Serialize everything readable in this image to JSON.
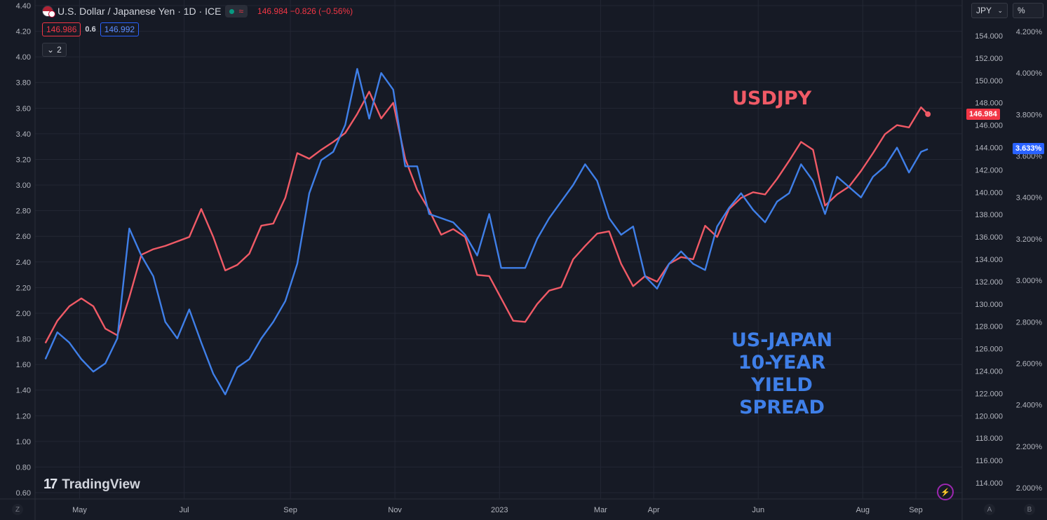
{
  "header": {
    "title": "U.S. Dollar / Japanese Yen · 1D · ICE",
    "price": "146.984",
    "change": "−0.826 (−0.56%)",
    "bid": "146.986",
    "spread": "0.6",
    "ask": "146.992",
    "indicator_count": "2"
  },
  "right_controls": {
    "currency": "JPY",
    "percent": "%"
  },
  "annotations": {
    "usdjpy": "USDJPY",
    "spread_lines": [
      "US-JAPAN",
      "10-YEAR",
      "YIELD",
      "SPREAD"
    ]
  },
  "price_tags": {
    "usdjpy_last": "146.984",
    "spread_last": "3.633%"
  },
  "logo": {
    "text": "TradingView"
  },
  "corner_buttons": {
    "left": "Z",
    "auto": "A",
    "log": "B"
  },
  "icons": [
    "flag-icon",
    "status-dot-icon",
    "waves-icon",
    "chevron-down-icon",
    "tradingview-logo-icon",
    "bolt-icon"
  ],
  "colors": {
    "usdjpy": "#f05a66",
    "spread": "#3f7fe8",
    "background": "#161a25",
    "grid": "#232734"
  },
  "chart_data": {
    "type": "line",
    "axes": {
      "left": {
        "ticks": [
          "4.40",
          "4.20",
          "4.00",
          "3.80",
          "3.60",
          "3.40",
          "3.20",
          "3.00",
          "2.80",
          "2.60",
          "2.40",
          "2.20",
          "2.00",
          "1.80",
          "1.60",
          "1.40",
          "1.20",
          "1.00",
          "0.80",
          "0.60"
        ],
        "range": [
          0.6,
          4.4
        ]
      },
      "right_usdjpy": {
        "ticks": [
          "154.000",
          "152.000",
          "150.000",
          "148.000",
          "146.000",
          "144.000",
          "142.000",
          "140.000",
          "138.000",
          "136.000",
          "134.000",
          "132.000",
          "130.000",
          "128.000",
          "126.000",
          "124.000",
          "122.000",
          "120.000",
          "118.000",
          "116.000",
          "114.000"
        ],
        "range": [
          113,
          156.5
        ]
      },
      "right_spread": {
        "ticks": [
          "4.200%",
          "4.000%",
          "3.800%",
          "3.600%",
          "3.400%",
          "3.200%",
          "3.000%",
          "2.800%",
          "2.600%",
          "2.400%",
          "2.200%",
          "2.000%"
        ],
        "range": [
          1.985,
          4.245
        ]
      },
      "x": {
        "labels": [
          "May",
          "Jul",
          "Sep",
          "Nov",
          "2023",
          "Mar",
          "Apr",
          "Jun",
          "Aug",
          "Sep"
        ]
      }
    },
    "grid": true,
    "series": [
      {
        "name": "USDJPY",
        "axis": "right_usdjpy",
        "x": [
          "2022-04-11",
          "2022-04-18",
          "2022-04-25",
          "2022-05-02",
          "2022-05-09",
          "2022-05-16",
          "2022-05-23",
          "2022-05-30",
          "2022-06-06",
          "2022-06-13",
          "2022-06-20",
          "2022-06-27",
          "2022-07-04",
          "2022-07-11",
          "2022-07-18",
          "2022-07-25",
          "2022-08-01",
          "2022-08-08",
          "2022-08-15",
          "2022-08-22",
          "2022-08-29",
          "2022-09-05",
          "2022-09-12",
          "2022-09-19",
          "2022-09-26",
          "2022-10-03",
          "2022-10-10",
          "2022-10-17",
          "2022-10-24",
          "2022-10-31",
          "2022-11-07",
          "2022-11-14",
          "2022-11-21",
          "2022-11-28",
          "2022-12-05",
          "2022-12-12",
          "2022-12-19",
          "2022-12-26",
          "2023-01-02",
          "2023-01-09",
          "2023-01-16",
          "2023-01-23",
          "2023-01-30",
          "2023-02-06",
          "2023-02-13",
          "2023-02-20",
          "2023-02-27",
          "2023-03-06",
          "2023-03-13",
          "2023-03-20",
          "2023-03-27",
          "2023-04-03",
          "2023-04-10",
          "2023-04-17",
          "2023-04-24",
          "2023-05-01",
          "2023-05-08",
          "2023-05-15",
          "2023-05-22",
          "2023-05-29",
          "2023-06-05",
          "2023-06-12",
          "2023-06-19",
          "2023-06-26",
          "2023-07-03",
          "2023-07-10",
          "2023-07-17",
          "2023-07-24",
          "2023-07-31",
          "2023-08-07",
          "2023-08-14",
          "2023-08-21",
          "2023-08-28",
          "2023-09-04",
          "2023-09-08"
        ],
        "values": [
          126.5,
          128.5,
          129.8,
          130.5,
          129.8,
          127.8,
          127.2,
          130.6,
          134.4,
          134.9,
          135.2,
          135.6,
          136.0,
          138.5,
          136.0,
          133.0,
          133.5,
          134.5,
          137.0,
          137.2,
          139.5,
          143.5,
          143.0,
          143.8,
          144.5,
          145.3,
          147.0,
          149.0,
          146.6,
          148.0,
          143.0,
          140.2,
          138.4,
          136.2,
          136.7,
          136.0,
          132.6,
          132.5,
          130.5,
          128.5,
          128.4,
          130.0,
          131.2,
          131.5,
          134.0,
          135.2,
          136.3,
          136.5,
          133.6,
          131.6,
          132.5,
          132.0,
          133.6,
          134.2,
          134.0,
          137.0,
          136.0,
          138.5,
          139.5,
          140.0,
          139.8,
          141.2,
          142.8,
          144.5,
          143.8,
          138.8,
          139.8,
          140.5,
          141.9,
          143.5,
          145.2,
          146.0,
          145.8,
          147.6,
          146.984
        ]
      },
      {
        "name": "US-Japan 10-Year Yield Spread",
        "axis": "right_spread",
        "x": [
          "2022-04-11",
          "2022-04-18",
          "2022-04-25",
          "2022-05-02",
          "2022-05-09",
          "2022-05-16",
          "2022-05-23",
          "2022-05-30",
          "2022-06-06",
          "2022-06-13",
          "2022-06-20",
          "2022-06-27",
          "2022-07-04",
          "2022-07-11",
          "2022-07-18",
          "2022-07-25",
          "2022-08-01",
          "2022-08-08",
          "2022-08-15",
          "2022-08-22",
          "2022-08-29",
          "2022-09-05",
          "2022-09-12",
          "2022-09-19",
          "2022-09-26",
          "2022-10-03",
          "2022-10-10",
          "2022-10-17",
          "2022-10-24",
          "2022-10-31",
          "2022-11-07",
          "2022-11-14",
          "2022-11-21",
          "2022-11-28",
          "2022-12-05",
          "2022-12-12",
          "2022-12-19",
          "2022-12-26",
          "2023-01-02",
          "2023-01-09",
          "2023-01-16",
          "2023-01-23",
          "2023-01-30",
          "2023-02-06",
          "2023-02-13",
          "2023-02-20",
          "2023-02-27",
          "2023-03-06",
          "2023-03-13",
          "2023-03-20",
          "2023-03-27",
          "2023-04-03",
          "2023-04-10",
          "2023-04-17",
          "2023-04-24",
          "2023-05-01",
          "2023-05-08",
          "2023-05-15",
          "2023-05-22",
          "2023-05-29",
          "2023-06-05",
          "2023-06-12",
          "2023-06-19",
          "2023-06-26",
          "2023-07-03",
          "2023-07-10",
          "2023-07-17",
          "2023-07-24",
          "2023-07-31",
          "2023-08-07",
          "2023-08-14",
          "2023-08-21",
          "2023-08-28",
          "2023-09-04",
          "2023-09-08"
        ],
        "values": [
          2.62,
          2.75,
          2.7,
          2.62,
          2.56,
          2.6,
          2.72,
          3.25,
          3.12,
          3.02,
          2.8,
          2.72,
          2.86,
          2.7,
          2.55,
          2.45,
          2.58,
          2.62,
          2.72,
          2.8,
          2.9,
          3.08,
          3.42,
          3.58,
          3.62,
          3.75,
          4.02,
          3.78,
          4.0,
          3.92,
          3.55,
          3.55,
          3.32,
          3.3,
          3.28,
          3.22,
          3.12,
          3.32,
          3.06,
          3.06,
          3.06,
          3.2,
          3.3,
          3.38,
          3.46,
          3.56,
          3.48,
          3.3,
          3.22,
          3.26,
          3.02,
          2.96,
          3.08,
          3.14,
          3.08,
          3.05,
          3.26,
          3.35,
          3.42,
          3.34,
          3.28,
          3.38,
          3.42,
          3.56,
          3.48,
          3.32,
          3.5,
          3.45,
          3.4,
          3.5,
          3.55,
          3.64,
          3.52,
          3.62,
          3.633
        ]
      }
    ]
  }
}
